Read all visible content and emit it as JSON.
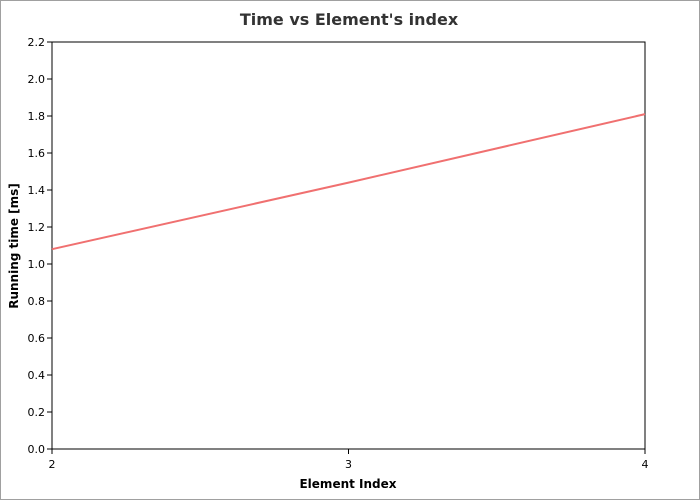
{
  "chart_data": {
    "type": "line",
    "title": "Time vs Element's index",
    "xlabel": "Element Index",
    "ylabel": "Running time [ms]",
    "xlim": [
      2,
      4
    ],
    "ylim": [
      0,
      2.2
    ],
    "x_ticks": [
      "2",
      "3",
      "4"
    ],
    "y_ticks": [
      "0.0",
      "0.2",
      "0.4",
      "0.6",
      "0.8",
      "1.0",
      "1.2",
      "1.4",
      "1.6",
      "1.8",
      "2.0",
      "2.2"
    ],
    "grid": false,
    "legend": "none",
    "series": [
      {
        "color": "#f07070",
        "x": [
          2,
          3,
          4
        ],
        "y": [
          1.08,
          1.44,
          1.81
        ]
      }
    ]
  }
}
